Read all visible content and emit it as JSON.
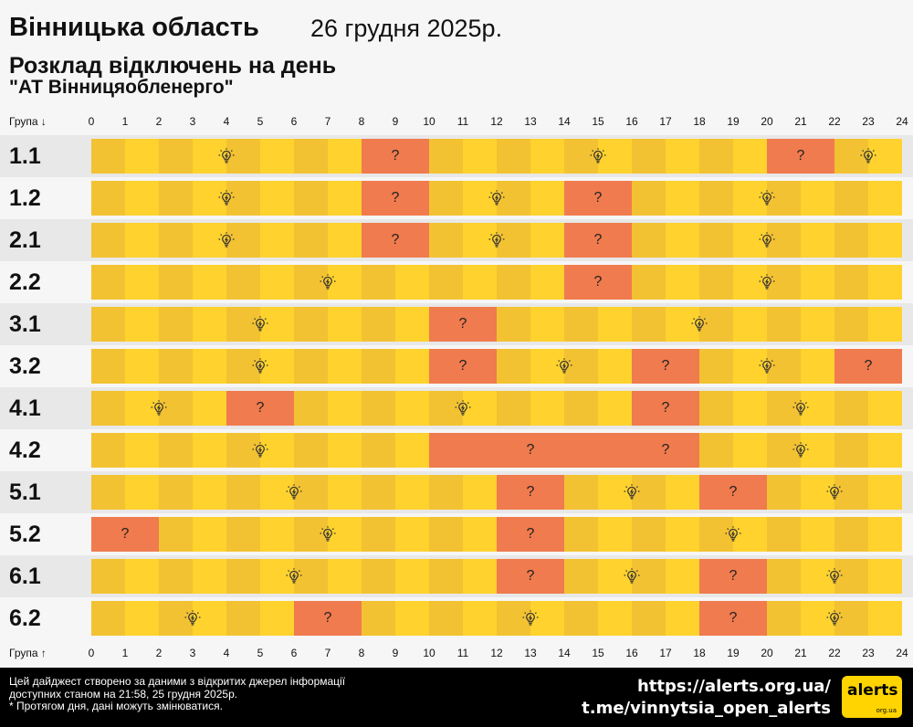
{
  "header": {
    "region": "Вінницька область",
    "date": "26 грудня 2025р.",
    "subtitle": "Розклад відключень на день",
    "company": "\"АТ Вінницяобленерго\""
  },
  "axis": {
    "top_label": "Група ↓",
    "bottom_label": "Група ↑",
    "hours": [
      "0",
      "1",
      "2",
      "3",
      "4",
      "5",
      "6",
      "7",
      "8",
      "9",
      "10",
      "11",
      "12",
      "13",
      "14",
      "15",
      "16",
      "17",
      "18",
      "19",
      "20",
      "21",
      "22",
      "23",
      "24"
    ]
  },
  "colors": {
    "power_on_a": "#f3c232",
    "power_on_b": "#ffd22e",
    "outage": "#f07b4e",
    "footer_bg": "#000000",
    "logo_bg": "#ffd400"
  },
  "chart_data": {
    "type": "table",
    "hours_range": [
      0,
      24
    ],
    "groups": [
      {
        "label": "1.1",
        "outages": [
          [
            8,
            10
          ],
          [
            20,
            22
          ]
        ],
        "on_markers": [
          4,
          15,
          23
        ],
        "off_markers": [
          9,
          21
        ]
      },
      {
        "label": "1.2",
        "outages": [
          [
            8,
            10
          ],
          [
            14,
            16
          ]
        ],
        "on_markers": [
          4,
          12,
          20
        ],
        "off_markers": [
          9,
          15
        ]
      },
      {
        "label": "2.1",
        "outages": [
          [
            8,
            10
          ],
          [
            14,
            16
          ]
        ],
        "on_markers": [
          4,
          12,
          20
        ],
        "off_markers": [
          9,
          15
        ]
      },
      {
        "label": "2.2",
        "outages": [
          [
            14,
            16
          ]
        ],
        "on_markers": [
          7,
          20
        ],
        "off_markers": [
          15
        ]
      },
      {
        "label": "3.1",
        "outages": [
          [
            10,
            12
          ]
        ],
        "on_markers": [
          5,
          18
        ],
        "off_markers": [
          11
        ]
      },
      {
        "label": "3.2",
        "outages": [
          [
            10,
            12
          ],
          [
            16,
            18
          ],
          [
            22,
            24
          ]
        ],
        "on_markers": [
          5,
          14,
          20
        ],
        "off_markers": [
          11,
          17,
          23
        ]
      },
      {
        "label": "4.1",
        "outages": [
          [
            4,
            6
          ],
          [
            16,
            18
          ]
        ],
        "on_markers": [
          2,
          11,
          21
        ],
        "off_markers": [
          5,
          17
        ]
      },
      {
        "label": "4.2",
        "outages": [
          [
            10,
            18
          ]
        ],
        "on_markers": [
          5,
          21
        ],
        "off_markers": [
          13,
          17
        ]
      },
      {
        "label": "5.1",
        "outages": [
          [
            12,
            14
          ],
          [
            18,
            20
          ]
        ],
        "on_markers": [
          6,
          16,
          22
        ],
        "off_markers": [
          13,
          19
        ]
      },
      {
        "label": "5.2",
        "outages": [
          [
            0,
            2
          ],
          [
            12,
            14
          ]
        ],
        "on_markers": [
          7,
          19
        ],
        "off_markers": [
          1,
          13
        ]
      },
      {
        "label": "6.1",
        "outages": [
          [
            12,
            14
          ],
          [
            18,
            20
          ]
        ],
        "on_markers": [
          6,
          16,
          22
        ],
        "off_markers": [
          13,
          19
        ]
      },
      {
        "label": "6.2",
        "outages": [
          [
            6,
            8
          ],
          [
            18,
            20
          ]
        ],
        "on_markers": [
          3,
          13,
          22
        ],
        "off_markers": [
          7,
          19
        ]
      }
    ],
    "off_marker_text": "?"
  },
  "footer": {
    "note_line1": "Цей дайджест створено за даними з відкритих джерел інформації",
    "note_line2": "доступних станом на 21:58, 25 грудня 2025р.",
    "note_line3": "* Протягом дня, дані можуть змінюватися.",
    "link1": "https://alerts.org.ua/",
    "link2": "t.me/vinnytsia_open_alerts",
    "logo_main": "alerts",
    "logo_sub": "org.ua"
  }
}
